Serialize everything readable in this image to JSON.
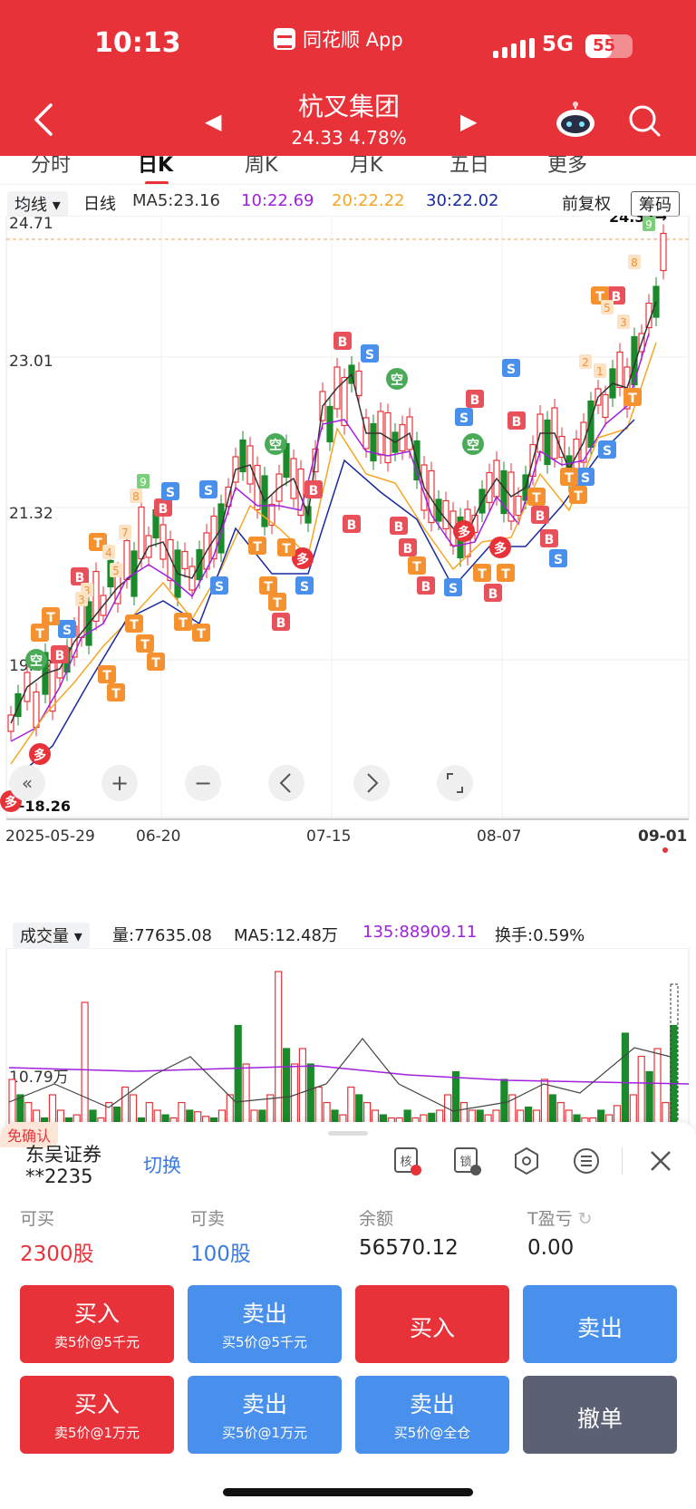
{
  "status": {
    "time": "10:13",
    "app": "同花顺 App",
    "network": "5G",
    "battery": "55"
  },
  "header": {
    "stock_name": "杭叉集团",
    "price_change": "24.33 4.78%"
  },
  "tabs": [
    "分时",
    "日K",
    "周K",
    "月K",
    "五日",
    "更多"
  ],
  "ma": {
    "selector": "均线",
    "period": "日线",
    "ma5": "MA5:23.16",
    "ma10": "10:22.69",
    "ma20": "20:22.22",
    "ma30": "30:22.02",
    "adjust": "前复权",
    "chips": "筹码",
    "colors": {
      "ma5": "#333333",
      "ma10": "#a020e0",
      "ma20": "#f5a623",
      "ma30": "#1a2aa0"
    }
  },
  "kchart": {
    "y_labels": [
      "24.71",
      "23.01",
      "21.32",
      "19.62"
    ],
    "high_label": "24.37",
    "low_label": "18.26",
    "x_labels": [
      "2025-05-29",
      "06-20",
      "07-15",
      "08-07",
      "09-01"
    ],
    "markers": {
      "duo": "多",
      "kong": "空",
      "buy": "B",
      "sell": "S",
      "t": "T",
      "numbers": [
        "9",
        "8",
        "7",
        "6",
        "5",
        "4",
        "3",
        "2",
        "1"
      ]
    }
  },
  "volume": {
    "selector": "成交量",
    "amount": "量:77635.08",
    "ma5": "MA5:12.48万",
    "ma135": "135:88909.11",
    "turnover": "换手:0.59%",
    "y_label": "10.79万"
  },
  "trade": {
    "badge": "免确认",
    "broker": "东吴证券",
    "account": "**2235",
    "switch": "切换",
    "labels": [
      "可买",
      "可卖",
      "余额",
      "T盈亏"
    ],
    "values": [
      "2300股",
      "100股",
      "56570.12",
      "0.00"
    ],
    "icon_texts": [
      "核",
      "锁"
    ],
    "buttons": [
      {
        "main": "买入",
        "sub": "卖5价@5千元"
      },
      {
        "main": "卖出",
        "sub": "买5价@5千元"
      },
      {
        "main": "买入",
        "sub": ""
      },
      {
        "main": "卖出",
        "sub": ""
      },
      {
        "main": "买入",
        "sub": "卖5价@1万元"
      },
      {
        "main": "卖出",
        "sub": "买5价@1万元"
      },
      {
        "main": "卖出",
        "sub": "买5价@全仓"
      },
      {
        "main": "撤单",
        "sub": ""
      }
    ]
  }
}
